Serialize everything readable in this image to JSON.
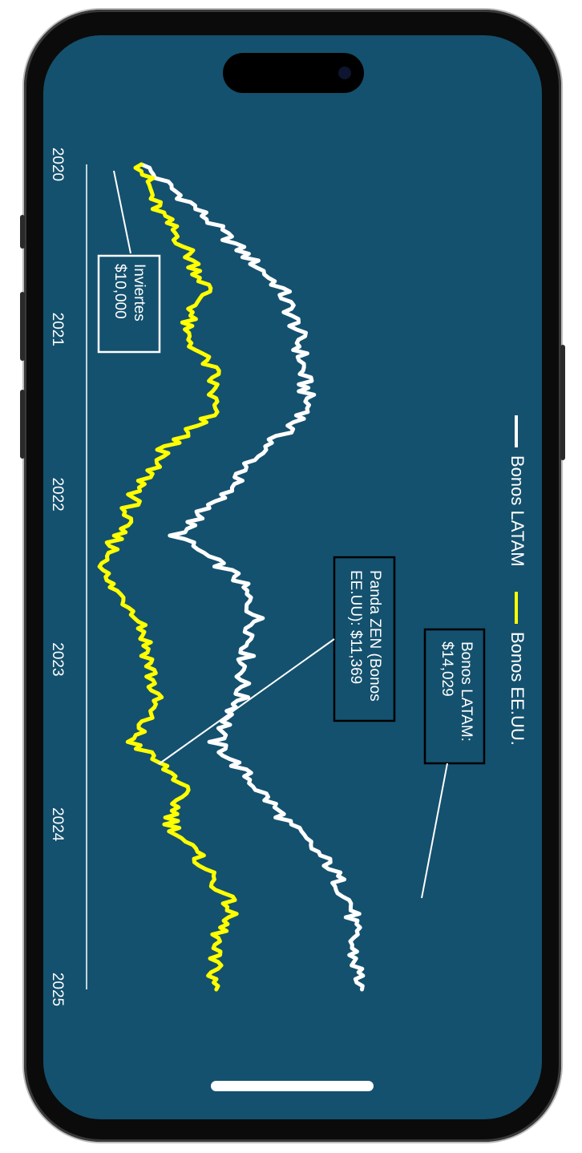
{
  "chart_data": {
    "type": "line",
    "orientation": "rotated-90-clockwise",
    "x": [
      "2020",
      "2020.25",
      "2020.5",
      "2020.75",
      "2021",
      "2021.25",
      "2021.5",
      "2021.75",
      "2022",
      "2022.25",
      "2022.5",
      "2022.75",
      "2023",
      "2023.25",
      "2023.5",
      "2023.75",
      "2024",
      "2024.25",
      "2024.5",
      "2024.75",
      "2025"
    ],
    "xticks": [
      "2020",
      "2021",
      "2022",
      "2023",
      "2024",
      "2025"
    ],
    "xlim": [
      2020,
      2025
    ],
    "ylim": [
      9000,
      15500
    ],
    "series": [
      {
        "name": "Bonos LATAM",
        "color": "#ffffff",
        "values": [
          10000,
          10950,
          11750,
          12550,
          12850,
          12950,
          13050,
          12150,
          11500,
          10650,
          11750,
          12100,
          11900,
          11800,
          11350,
          12050,
          12700,
          13450,
          13850,
          13850,
          14029
        ]
      },
      {
        "name": "Bonos EE.UU.",
        "color": "#ffff00",
        "values": [
          10000,
          10250,
          10800,
          11200,
          10750,
          11300,
          11300,
          10350,
          9900,
          9550,
          9300,
          10000,
          10150,
          10250,
          9850,
          10750,
          10550,
          11150,
          11650,
          11300,
          11369
        ]
      }
    ],
    "annotations": [
      {
        "lines": [
          "Inviertes",
          "$10,000"
        ]
      },
      {
        "lines": [
          "Panda ZEN (Bonos",
          "EE.UU): $11,369"
        ]
      },
      {
        "lines": [
          "Bonos LATAM:",
          "$14,029"
        ]
      }
    ]
  }
}
